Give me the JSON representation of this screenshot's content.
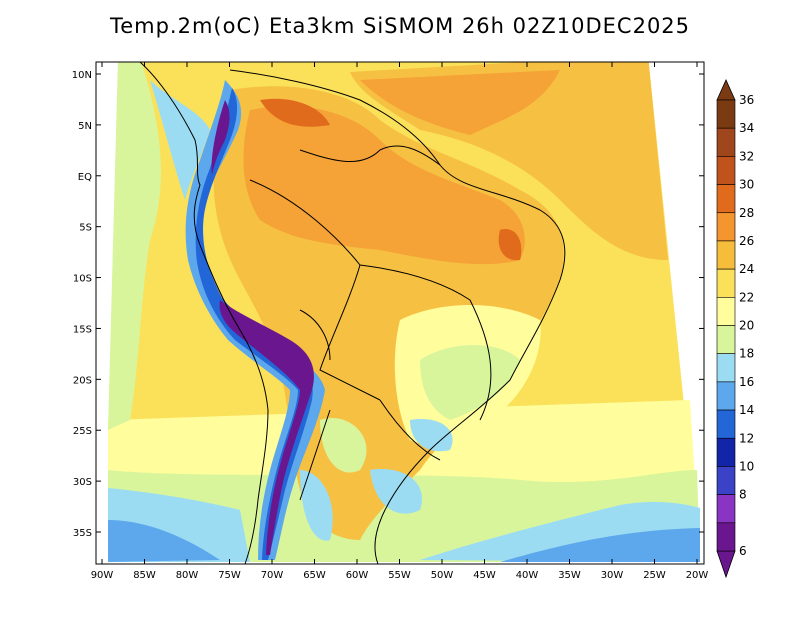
{
  "title": "Temp.2m(oC) Eta3km SiSMOM 26h 02Z10DEC2025",
  "lat_labels": [
    "10N",
    "5N",
    "EQ",
    "5S",
    "10S",
    "15S",
    "20S",
    "25S",
    "30S",
    "35S"
  ],
  "lon_labels": [
    "90W",
    "85W",
    "80W",
    "75W",
    "70W",
    "65W",
    "60W",
    "55W",
    "50W",
    "45W",
    "40W",
    "35W",
    "30W",
    "25W",
    "20W"
  ],
  "colorbar": {
    "labels": [
      "36",
      "34",
      "32",
      "30",
      "28",
      "26",
      "24",
      "22",
      "20",
      "18",
      "16",
      "14",
      "12",
      "10",
      "8",
      "6"
    ],
    "colors": [
      "#7a3a12",
      "#a0461c",
      "#c0521c",
      "#e06b1c",
      "#f4952e",
      "#f6bd3a",
      "#fbe15a",
      "#fffd9c",
      "#d8f59c",
      "#9bdcf3",
      "#5da7ec",
      "#2266d8",
      "#1224a8",
      "#3a42c8",
      "#8a34c4",
      "#6a168e"
    ]
  },
  "map_colors": {
    "warm_orange": "#f5a236",
    "mid_orange": "#f6c043",
    "yellow": "#fbe15a",
    "pale_yellow": "#fffd9c",
    "light_green": "#d8f59c",
    "light_blue": "#9bdcf3",
    "blue": "#5da7ec",
    "dark_blue": "#2266d8",
    "purple": "#6a168e"
  }
}
